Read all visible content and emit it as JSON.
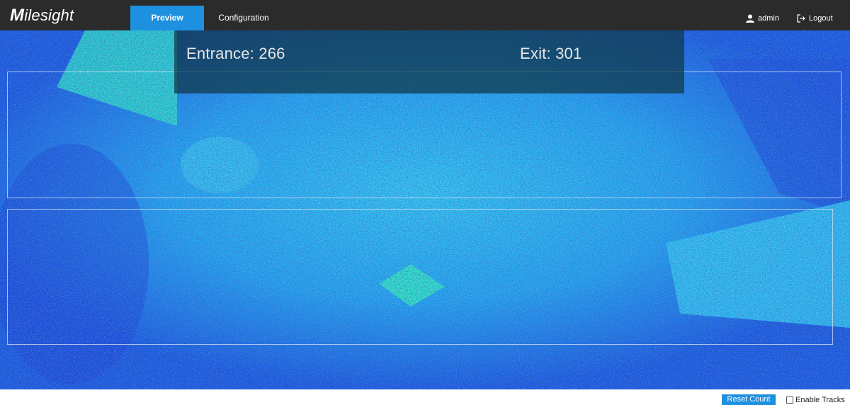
{
  "header": {
    "logo_text": "Milesight",
    "tabs": [
      {
        "label": "Preview",
        "active": true
      },
      {
        "label": "Configuration",
        "active": false
      }
    ],
    "user": {
      "name": "admin",
      "icon": "user-icon"
    },
    "logout": {
      "label": "Logout",
      "icon": "logout-icon"
    }
  },
  "preview": {
    "entrance_label": "Entrance: 266",
    "exit_label": "Exit: 301",
    "entrance_count": 266,
    "exit_count": 301
  },
  "controls": {
    "reset_label": "Reset Count",
    "tracks_label": "Enable Tracks",
    "tracks_checked": false
  },
  "colors": {
    "accent": "#1e90e0",
    "topbar": "#2b2b2b"
  }
}
